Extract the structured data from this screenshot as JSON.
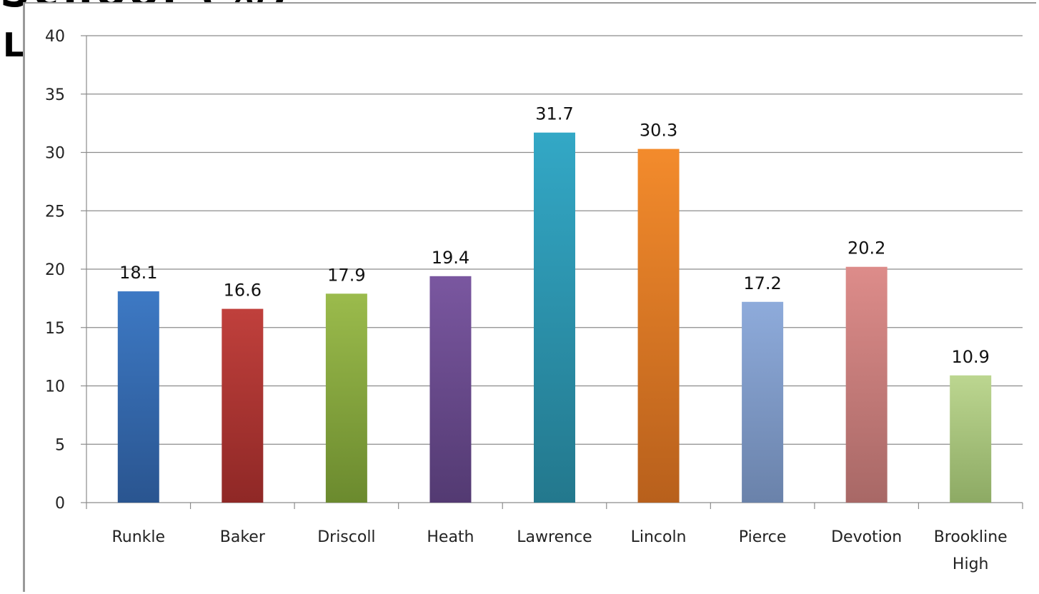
{
  "background_text": {
    "line1": "School (%)",
    "line2": "L"
  },
  "chart_data": {
    "type": "bar",
    "title": "",
    "xlabel": "",
    "ylabel": "",
    "ylim": [
      0,
      40
    ],
    "yticks": [
      "0",
      "5",
      "10",
      "15",
      "20",
      "25",
      "30",
      "35",
      "40"
    ],
    "grid": true,
    "categories": [
      [
        "Runkle"
      ],
      [
        "Baker"
      ],
      [
        "Driscoll"
      ],
      [
        "Heath"
      ],
      [
        "Lawrence"
      ],
      [
        "Lincoln"
      ],
      [
        "Pierce"
      ],
      [
        "Devotion"
      ],
      [
        "Brookline",
        "High"
      ]
    ],
    "values": [
      18.1,
      16.6,
      17.9,
      19.4,
      31.7,
      30.3,
      17.2,
      20.2,
      10.9
    ],
    "data_labels": [
      "18.1",
      "16.6",
      "17.9",
      "19.4",
      "31.7",
      "30.3",
      "17.2",
      "20.2",
      "10.9"
    ],
    "colors": [
      [
        "#3d79c4",
        "#2a5590"
      ],
      [
        "#c0403c",
        "#8f2826"
      ],
      [
        "#9bbb4c",
        "#6b8a2e"
      ],
      [
        "#7a57a0",
        "#533a72"
      ],
      [
        "#33a8c6",
        "#23788d"
      ],
      [
        "#f38b2c",
        "#b8601c"
      ],
      [
        "#8eabdb",
        "#6a82aa"
      ],
      [
        "#dd8c8a",
        "#a86866"
      ],
      [
        "#bcd690",
        "#8daa64"
      ]
    ]
  }
}
